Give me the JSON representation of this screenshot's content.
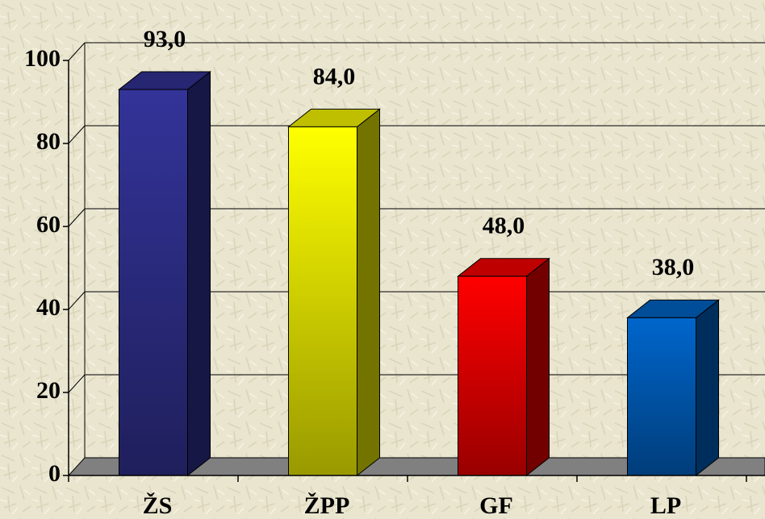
{
  "chart_data": {
    "type": "bar",
    "categories": [
      "ŽS",
      "ŽPP",
      "GF",
      "LP"
    ],
    "values": [
      93,
      84,
      48,
      38
    ],
    "value_labels": [
      "93,0",
      "84,0",
      "48,0",
      "38,0"
    ],
    "colors": [
      "#333399",
      "#ffff00",
      "#ff0000",
      "#0066cc"
    ],
    "ylim": [
      0,
      100
    ],
    "yticks": [
      0,
      20,
      40,
      60,
      80,
      100
    ],
    "grid": true
  }
}
